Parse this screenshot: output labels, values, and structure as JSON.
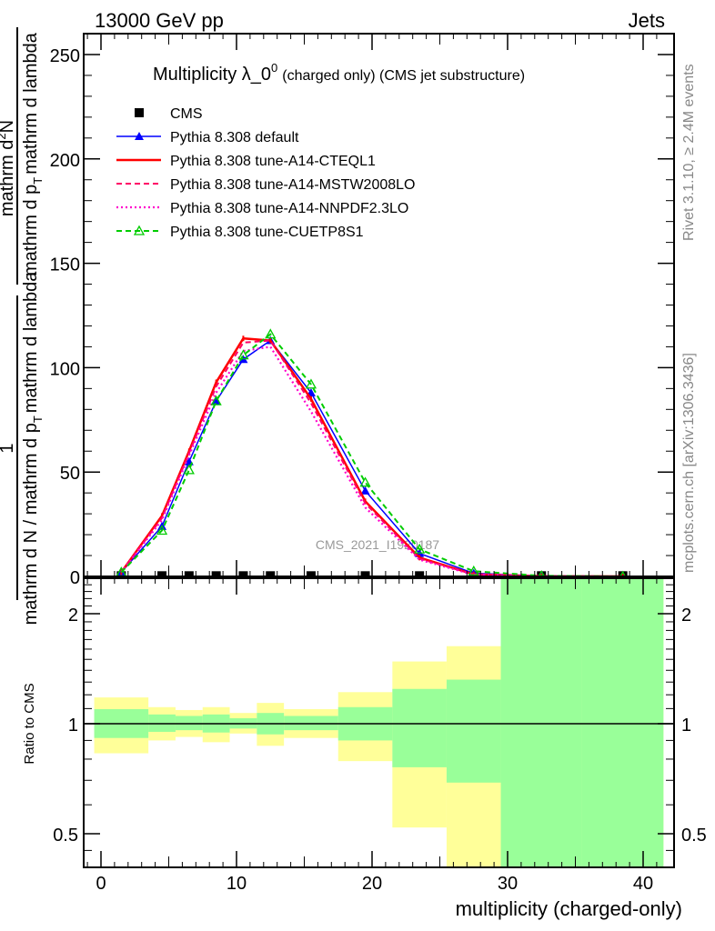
{
  "header": {
    "left": "13000 GeV pp",
    "right": "Jets"
  },
  "side_labels": {
    "rivet": "Rivet 3.1.10, ≥ 2.4M events",
    "mcplots": "mcplots.cern.ch [arXiv:1306.3436]"
  },
  "watermark": "CMS_2021_I1920187",
  "colors": {
    "band_stat": "#99ff99",
    "band_total": "#ffff99"
  },
  "chart_data": [
    {
      "type": "line",
      "title": "Multiplicity λ_0",
      "title_sup": "0",
      "subtitle": "(charged only) (CMS jet substructure)",
      "xlabel": "multiplicity (charged-only)",
      "ylabel_num1": "1",
      "ylabel_den1": "mathrm d N / mathrm d p",
      "ylabel_den1_sub": "T",
      "ylabel_den1_tail": "mathrm d lambda",
      "ylabel_num2": "mathrm d",
      "ylabel_num2_sup": "2",
      "ylabel_num2_tail": "N",
      "ylabel_den2": "mathrm d p",
      "ylabel_den2_sub": "T",
      "ylabel_den2_tail": "mathrm d lambda",
      "xlim": [
        -1.5,
        42
      ],
      "ylim": [
        0,
        260
      ],
      "y_ticks": [
        "0",
        "50",
        "100",
        "150",
        "200",
        "250"
      ],
      "y_tick_values": [
        0,
        50,
        100,
        150,
        200,
        250
      ],
      "bin_edges": [
        -0.5,
        3.5,
        5.5,
        7.5,
        9.5,
        11.5,
        13.5,
        17.5,
        21.5,
        25.5,
        29.5,
        35.5,
        41.5
      ],
      "x": [
        1.5,
        4.5,
        6.5,
        8.5,
        10.5,
        12.5,
        15.5,
        19.5,
        23.5,
        27.5,
        32.5,
        38.5
      ],
      "legend_position": "top-left",
      "series": [
        {
          "name": "CMS",
          "color": "#000000",
          "style": "markers",
          "marker": "square",
          "values": [
            0.3,
            0.3,
            0.3,
            0.3,
            0.3,
            0.3,
            0.3,
            0.3,
            0.3,
            0.3,
            0.3,
            0.3
          ]
        },
        {
          "name": "Pythia 8.308 default",
          "color": "#0000ff",
          "style": "solid",
          "marker": "triangle",
          "values": [
            2,
            24,
            55,
            84,
            104,
            113,
            88,
            41,
            11,
            1.5,
            0.2,
            0
          ]
        },
        {
          "name": "Pythia 8.308 tune-A14-CTEQL1",
          "color": "#ff0000",
          "style": "solid-thick",
          "marker": "none",
          "values": [
            2,
            29,
            60,
            93,
            114,
            113,
            85,
            36,
            9,
            1,
            0.1,
            0
          ]
        },
        {
          "name": "Pythia 8.308 tune-A14-MSTW2008LO",
          "color": "#ff0066",
          "style": "dashed",
          "marker": "none",
          "values": [
            2,
            28,
            59,
            91,
            112,
            113,
            83,
            35,
            8.5,
            1,
            0.1,
            0
          ]
        },
        {
          "name": "Pythia 8.308 tune-A14-NNPDF2.3LO",
          "color": "#ff00cc",
          "style": "dotted",
          "marker": "none",
          "values": [
            2,
            27,
            58,
            88,
            108,
            110,
            79,
            33,
            8,
            0.8,
            0.1,
            0
          ]
        },
        {
          "name": "Pythia 8.308 tune-CUETP8S1",
          "color": "#00cc00",
          "style": "dashed",
          "marker": "open-triangle",
          "values": [
            2,
            22,
            51,
            84,
            106,
            116,
            92,
            45,
            13,
            2.5,
            0.3,
            0
          ]
        }
      ]
    },
    {
      "type": "area",
      "ylabel": "Ratio to CMS",
      "xlabel": "multiplicity (charged-only)",
      "scale": "log",
      "ylim": [
        0.405,
        2.5
      ],
      "x_ticks": [
        "0",
        "10",
        "20",
        "30",
        "40"
      ],
      "x_tick_values": [
        0,
        10,
        20,
        30,
        40
      ],
      "y_ticks": [
        "0.5",
        "1",
        "2"
      ],
      "y_tick_values": [
        0.5,
        1,
        2
      ],
      "reference_line": 1,
      "bin_edges": [
        -0.5,
        3.5,
        5.5,
        7.5,
        9.5,
        11.5,
        13.5,
        17.5,
        21.5,
        25.5,
        29.5,
        35.5,
        41.5
      ],
      "band_total": [
        [
          0.83,
          1.18
        ],
        [
          0.9,
          1.11
        ],
        [
          0.92,
          1.09
        ],
        [
          0.89,
          1.11
        ],
        [
          0.94,
          1.07
        ],
        [
          0.87,
          1.14
        ],
        [
          0.914,
          1.096
        ],
        [
          0.79,
          1.22
        ],
        [
          0.52,
          1.48
        ],
        [
          0.3,
          1.63
        ],
        [
          0.3,
          2.4
        ],
        [
          0.3,
          3.0
        ]
      ],
      "band_stat": [
        [
          0.914,
          1.096
        ],
        [
          0.95,
          1.06
        ],
        [
          0.96,
          1.05
        ],
        [
          0.946,
          1.06
        ],
        [
          0.97,
          1.035
        ],
        [
          0.935,
          1.07
        ],
        [
          0.96,
          1.05
        ],
        [
          0.9,
          1.11
        ],
        [
          0.76,
          1.245
        ],
        [
          0.69,
          1.32
        ],
        [
          0.3,
          3.0
        ],
        [
          0.3,
          3.0
        ]
      ]
    }
  ]
}
